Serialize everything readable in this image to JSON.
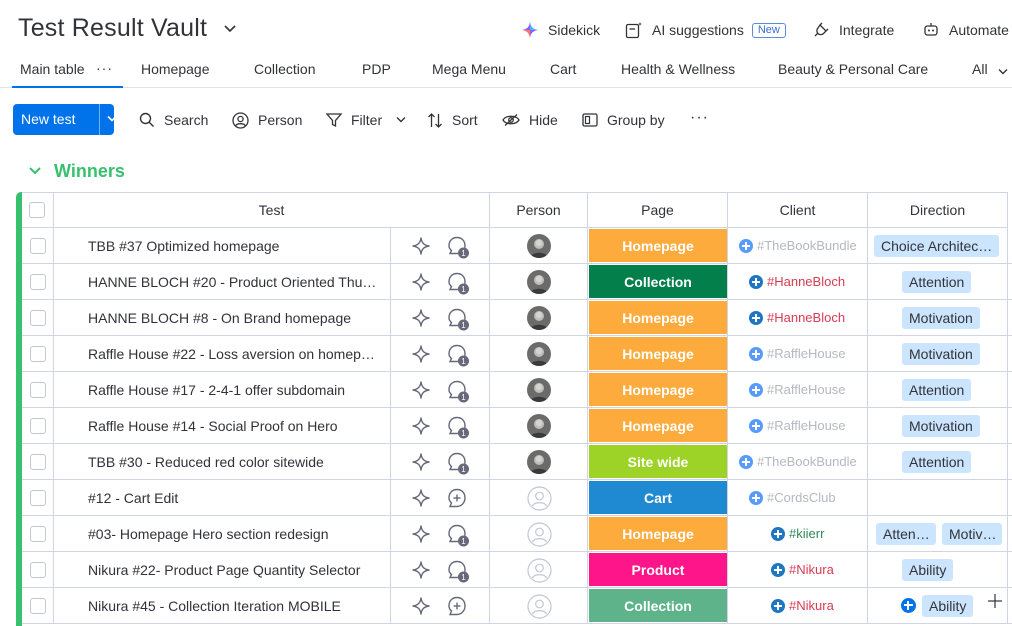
{
  "header": {
    "title": "Test Result Vault",
    "actions": {
      "sidekick": "Sidekick",
      "ai_suggestions": "AI suggestions",
      "new_badge": "New",
      "integrate": "Integrate",
      "automate": "Automate"
    }
  },
  "views": {
    "tabs": [
      "Main table",
      "Homepage",
      "Collection",
      "PDP",
      "Mega Menu",
      "Cart",
      "Health & Wellness",
      "Beauty & Personal Care",
      "All"
    ],
    "active": "Main table"
  },
  "toolbar": {
    "new_test": "New test",
    "search": "Search",
    "person": "Person",
    "filter": "Filter",
    "sort": "Sort",
    "hide": "Hide",
    "group_by": "Group by"
  },
  "group": {
    "title": "Winners",
    "color": "#37c06e"
  },
  "columns": {
    "test": "Test",
    "person": "Person",
    "page": "Page",
    "client": "Client",
    "direction": "Direction"
  },
  "page_colors": {
    "Homepage": "#fdab3d",
    "Collection": "#037f4c",
    "Site wide": "#9cd326",
    "Cart": "#1f8ad1",
    "Product": "#ff158a",
    "Collection-light": "#5fb38a"
  },
  "rows": [
    {
      "name": "TBB #37 Optimized homepage",
      "page": "Homepage",
      "client": "#TheBookBundle",
      "client_muted": true,
      "direction": [
        "Choice Architec…"
      ],
      "avatar": true,
      "updates": 1
    },
    {
      "name": "HANNE BLOCH #20 - Product Oriented Thu…",
      "page": "Collection",
      "client": "#HanneBloch",
      "client_muted": false,
      "direction": [
        "Attention"
      ],
      "avatar": true,
      "updates": 1
    },
    {
      "name": "HANNE BLOCH #8 - On Brand homepage",
      "page": "Homepage",
      "client": "#HanneBloch",
      "client_muted": false,
      "direction": [
        "Motivation"
      ],
      "avatar": true,
      "updates": 1
    },
    {
      "name": "Raffle House #22 - Loss aversion on homepa…",
      "page": "Homepage",
      "client": "#RaffleHouse",
      "client_muted": true,
      "direction": [
        "Motivation"
      ],
      "avatar": true,
      "updates": 1
    },
    {
      "name": "Raffle House #17 - 2-4-1 offer subdomain",
      "page": "Homepage",
      "client": "#RaffleHouse",
      "client_muted": true,
      "direction": [
        "Attention"
      ],
      "avatar": true,
      "updates": 1
    },
    {
      "name": "Raffle House #14 - Social Proof on Hero",
      "page": "Homepage",
      "client": "#RaffleHouse",
      "client_muted": true,
      "direction": [
        "Motivation"
      ],
      "avatar": true,
      "updates": 1
    },
    {
      "name": "TBB #30 - Reduced red color sitewide",
      "page": "Site wide",
      "client": "#TheBookBundle",
      "client_muted": true,
      "direction": [
        "Attention"
      ],
      "avatar": true,
      "updates": 1
    },
    {
      "name": "#12 - Cart Edit",
      "page": "Cart",
      "client": "#CordsClub",
      "client_muted": true,
      "direction": [],
      "avatar": false,
      "updates": 0
    },
    {
      "name": "#03- Homepage Hero section redesign",
      "page": "Homepage",
      "client": "#kiierr",
      "client_muted": false,
      "client_color": "#2e8b57",
      "direction": [
        "Atten…",
        "Motiv…"
      ],
      "avatar": false,
      "updates": 1
    },
    {
      "name": "Nikura #22- Product Page Quantity Selector",
      "page": "Product",
      "client": "#Nikura",
      "client_muted": false,
      "direction": [
        "Ability"
      ],
      "avatar": false,
      "updates": 1
    },
    {
      "name": "Nikura #45 - Collection Iteration MOBILE",
      "page": "Collection",
      "page_light": true,
      "client": "#Nikura",
      "client_muted": false,
      "direction": [
        "Ability"
      ],
      "direction_plus": true,
      "avatar": false,
      "updates": 0
    }
  ]
}
